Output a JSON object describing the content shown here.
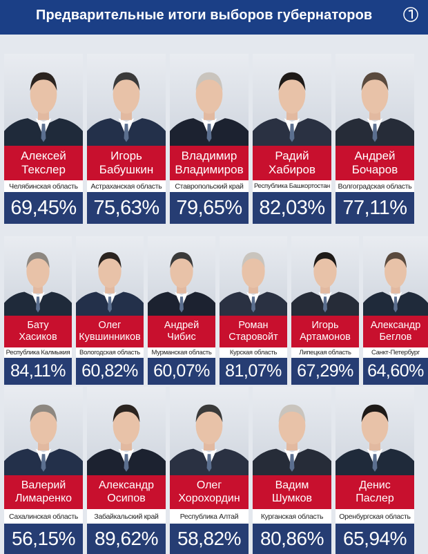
{
  "header": {
    "title": "Предварительные итоги выборов губернаторов",
    "bg_color": "#1b3f86"
  },
  "colors": {
    "name_bg": "#c8102e",
    "percent_bg": "#263d73",
    "page_bg": "#e4e8ee"
  },
  "candidates": [
    {
      "first": "Алексей",
      "last": "Текслер",
      "region": "Челябинская область",
      "percent": "69,45%"
    },
    {
      "first": "Игорь",
      "last": "Бабушкин",
      "region": "Астраханская область",
      "percent": "75,63%"
    },
    {
      "first": "Владимир",
      "last": "Владимиров",
      "region": "Ставропольский край",
      "percent": "79,65%"
    },
    {
      "first": "Радий",
      "last": "Хабиров",
      "region": "Республика Башкортостан",
      "percent": "82,03%"
    },
    {
      "first": "Андрей",
      "last": "Бочаров",
      "region": "Волгоградская область",
      "percent": "77,11%"
    },
    {
      "first": "Бату",
      "last": "Хасиков",
      "region": "Республика Калмыкия",
      "percent": "84,11%"
    },
    {
      "first": "Олег",
      "last": "Кувшинников",
      "region": "Вологодская область",
      "percent": "60,82%"
    },
    {
      "first": "Андрей",
      "last": "Чибис",
      "region": "Мурманская область",
      "percent": "60,07%"
    },
    {
      "first": "Роман",
      "last": "Старовойт",
      "region": "Курская область",
      "percent": "81,07%"
    },
    {
      "first": "Игорь",
      "last": "Артамонов",
      "region": "Липецкая область",
      "percent": "67,29%"
    },
    {
      "first": "Александр",
      "last": "Беглов",
      "region": "Санкт-Петербург",
      "percent": "64,60%"
    },
    {
      "first": "Валерий",
      "last": "Лимаренко",
      "region": "Сахалинская область",
      "percent": "56,15%"
    },
    {
      "first": "Александр",
      "last": "Осипов",
      "region": "Забайкальский край",
      "percent": "89,62%"
    },
    {
      "first": "Олег",
      "last": "Хорохордин",
      "region": "Республика Алтай",
      "percent": "58,82%"
    },
    {
      "first": "Вадим",
      "last": "Шумков",
      "region": "Курганская область",
      "percent": "80,86%"
    },
    {
      "first": "Денис",
      "last": "Паслер",
      "region": "Оренбургская область",
      "percent": "65,94%"
    }
  ]
}
